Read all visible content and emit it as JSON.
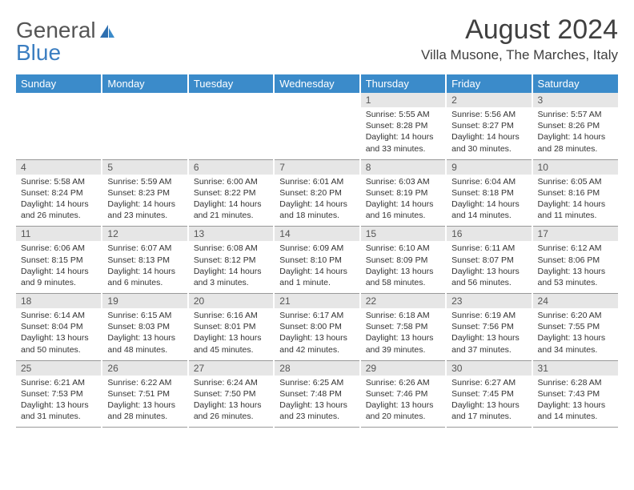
{
  "brand": {
    "part1": "General",
    "part2": "Blue"
  },
  "title": "August 2024",
  "location": "Villa Musone, The Marches, Italy",
  "colors": {
    "header_bg": "#3b8bca",
    "header_text": "#ffffff",
    "daynum_bg": "#e6e6e6",
    "text": "#333333",
    "logo_gray": "#555555",
    "logo_blue": "#3b7ec1",
    "row_border": "#999999"
  },
  "weekdays": [
    "Sunday",
    "Monday",
    "Tuesday",
    "Wednesday",
    "Thursday",
    "Friday",
    "Saturday"
  ],
  "weeks": [
    [
      {
        "empty": true
      },
      {
        "empty": true
      },
      {
        "empty": true
      },
      {
        "empty": true
      },
      {
        "day": "1",
        "sunrise": "Sunrise: 5:55 AM",
        "sunset": "Sunset: 8:28 PM",
        "daylight": "Daylight: 14 hours and 33 minutes."
      },
      {
        "day": "2",
        "sunrise": "Sunrise: 5:56 AM",
        "sunset": "Sunset: 8:27 PM",
        "daylight": "Daylight: 14 hours and 30 minutes."
      },
      {
        "day": "3",
        "sunrise": "Sunrise: 5:57 AM",
        "sunset": "Sunset: 8:26 PM",
        "daylight": "Daylight: 14 hours and 28 minutes."
      }
    ],
    [
      {
        "day": "4",
        "sunrise": "Sunrise: 5:58 AM",
        "sunset": "Sunset: 8:24 PM",
        "daylight": "Daylight: 14 hours and 26 minutes."
      },
      {
        "day": "5",
        "sunrise": "Sunrise: 5:59 AM",
        "sunset": "Sunset: 8:23 PM",
        "daylight": "Daylight: 14 hours and 23 minutes."
      },
      {
        "day": "6",
        "sunrise": "Sunrise: 6:00 AM",
        "sunset": "Sunset: 8:22 PM",
        "daylight": "Daylight: 14 hours and 21 minutes."
      },
      {
        "day": "7",
        "sunrise": "Sunrise: 6:01 AM",
        "sunset": "Sunset: 8:20 PM",
        "daylight": "Daylight: 14 hours and 18 minutes."
      },
      {
        "day": "8",
        "sunrise": "Sunrise: 6:03 AM",
        "sunset": "Sunset: 8:19 PM",
        "daylight": "Daylight: 14 hours and 16 minutes."
      },
      {
        "day": "9",
        "sunrise": "Sunrise: 6:04 AM",
        "sunset": "Sunset: 8:18 PM",
        "daylight": "Daylight: 14 hours and 14 minutes."
      },
      {
        "day": "10",
        "sunrise": "Sunrise: 6:05 AM",
        "sunset": "Sunset: 8:16 PM",
        "daylight": "Daylight: 14 hours and 11 minutes."
      }
    ],
    [
      {
        "day": "11",
        "sunrise": "Sunrise: 6:06 AM",
        "sunset": "Sunset: 8:15 PM",
        "daylight": "Daylight: 14 hours and 9 minutes."
      },
      {
        "day": "12",
        "sunrise": "Sunrise: 6:07 AM",
        "sunset": "Sunset: 8:13 PM",
        "daylight": "Daylight: 14 hours and 6 minutes."
      },
      {
        "day": "13",
        "sunrise": "Sunrise: 6:08 AM",
        "sunset": "Sunset: 8:12 PM",
        "daylight": "Daylight: 14 hours and 3 minutes."
      },
      {
        "day": "14",
        "sunrise": "Sunrise: 6:09 AM",
        "sunset": "Sunset: 8:10 PM",
        "daylight": "Daylight: 14 hours and 1 minute."
      },
      {
        "day": "15",
        "sunrise": "Sunrise: 6:10 AM",
        "sunset": "Sunset: 8:09 PM",
        "daylight": "Daylight: 13 hours and 58 minutes."
      },
      {
        "day": "16",
        "sunrise": "Sunrise: 6:11 AM",
        "sunset": "Sunset: 8:07 PM",
        "daylight": "Daylight: 13 hours and 56 minutes."
      },
      {
        "day": "17",
        "sunrise": "Sunrise: 6:12 AM",
        "sunset": "Sunset: 8:06 PM",
        "daylight": "Daylight: 13 hours and 53 minutes."
      }
    ],
    [
      {
        "day": "18",
        "sunrise": "Sunrise: 6:14 AM",
        "sunset": "Sunset: 8:04 PM",
        "daylight": "Daylight: 13 hours and 50 minutes."
      },
      {
        "day": "19",
        "sunrise": "Sunrise: 6:15 AM",
        "sunset": "Sunset: 8:03 PM",
        "daylight": "Daylight: 13 hours and 48 minutes."
      },
      {
        "day": "20",
        "sunrise": "Sunrise: 6:16 AM",
        "sunset": "Sunset: 8:01 PM",
        "daylight": "Daylight: 13 hours and 45 minutes."
      },
      {
        "day": "21",
        "sunrise": "Sunrise: 6:17 AM",
        "sunset": "Sunset: 8:00 PM",
        "daylight": "Daylight: 13 hours and 42 minutes."
      },
      {
        "day": "22",
        "sunrise": "Sunrise: 6:18 AM",
        "sunset": "Sunset: 7:58 PM",
        "daylight": "Daylight: 13 hours and 39 minutes."
      },
      {
        "day": "23",
        "sunrise": "Sunrise: 6:19 AM",
        "sunset": "Sunset: 7:56 PM",
        "daylight": "Daylight: 13 hours and 37 minutes."
      },
      {
        "day": "24",
        "sunrise": "Sunrise: 6:20 AM",
        "sunset": "Sunset: 7:55 PM",
        "daylight": "Daylight: 13 hours and 34 minutes."
      }
    ],
    [
      {
        "day": "25",
        "sunrise": "Sunrise: 6:21 AM",
        "sunset": "Sunset: 7:53 PM",
        "daylight": "Daylight: 13 hours and 31 minutes."
      },
      {
        "day": "26",
        "sunrise": "Sunrise: 6:22 AM",
        "sunset": "Sunset: 7:51 PM",
        "daylight": "Daylight: 13 hours and 28 minutes."
      },
      {
        "day": "27",
        "sunrise": "Sunrise: 6:24 AM",
        "sunset": "Sunset: 7:50 PM",
        "daylight": "Daylight: 13 hours and 26 minutes."
      },
      {
        "day": "28",
        "sunrise": "Sunrise: 6:25 AM",
        "sunset": "Sunset: 7:48 PM",
        "daylight": "Daylight: 13 hours and 23 minutes."
      },
      {
        "day": "29",
        "sunrise": "Sunrise: 6:26 AM",
        "sunset": "Sunset: 7:46 PM",
        "daylight": "Daylight: 13 hours and 20 minutes."
      },
      {
        "day": "30",
        "sunrise": "Sunrise: 6:27 AM",
        "sunset": "Sunset: 7:45 PM",
        "daylight": "Daylight: 13 hours and 17 minutes."
      },
      {
        "day": "31",
        "sunrise": "Sunrise: 6:28 AM",
        "sunset": "Sunset: 7:43 PM",
        "daylight": "Daylight: 13 hours and 14 minutes."
      }
    ]
  ]
}
